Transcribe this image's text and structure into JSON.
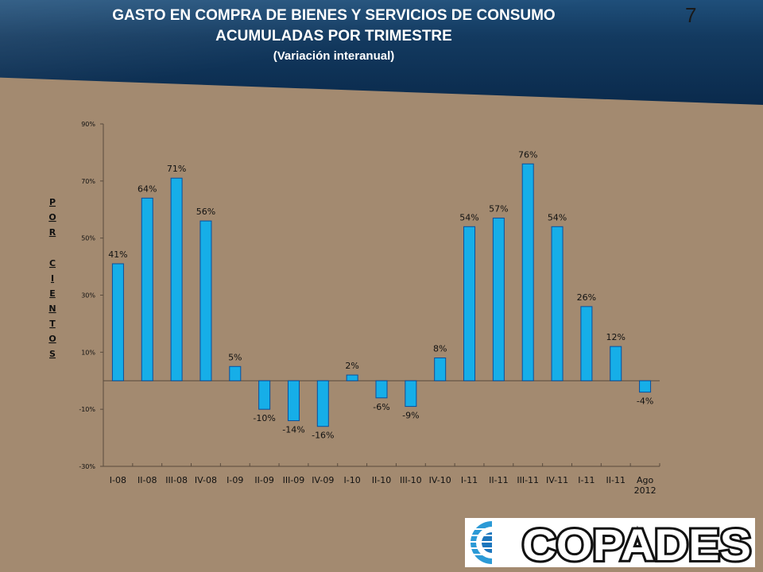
{
  "slide": {
    "title_line1": "GASTO EN COMPRA DE BIENES Y SERVICIOS DE CONSUMO",
    "title_line2": "ACUMULADAS POR TRIMESTRE",
    "subtitle": "(Variación interanual)",
    "page_number": "7"
  },
  "logo": {
    "text": "COPADES"
  },
  "colors": {
    "header": "#133a60",
    "background": "#a38a70",
    "bar": "#16aee8",
    "bar_stroke": "#0b4f9c"
  },
  "chart_data": {
    "type": "bar",
    "categories": [
      "I-08",
      "II-08",
      "III-08",
      "IV-08",
      "I-09",
      "II-09",
      "III-09",
      "IV-09",
      "I-10",
      "II-10",
      "III-10",
      "IV-10",
      "I-11",
      "II-11",
      "III-11",
      "IV-11",
      "I-11",
      "II-11",
      "Ago 2012"
    ],
    "values": [
      41,
      64,
      71,
      56,
      5,
      -10,
      -14,
      -16,
      2,
      -6,
      -9,
      8,
      54,
      57,
      76,
      54,
      26,
      12,
      -4
    ],
    "data_labels": [
      "41%",
      "64%",
      "71%",
      "56%",
      "5%",
      "-10%",
      "-14%",
      "-16%",
      "2%",
      "-6%",
      "-9%",
      "8%",
      "54%",
      "57%",
      "76%",
      "54%",
      "26%",
      "12%",
      "-4%"
    ],
    "ylabel": "POR CIENTOS",
    "ylim": [
      -30,
      90
    ],
    "y_ticks": [
      90,
      70,
      50,
      30,
      10,
      -10,
      -30
    ],
    "y_tick_labels": [
      "90%",
      "70%",
      "50%",
      "30%",
      "10%",
      "-10%",
      "-30%"
    ],
    "grid": false,
    "legend": "none"
  }
}
